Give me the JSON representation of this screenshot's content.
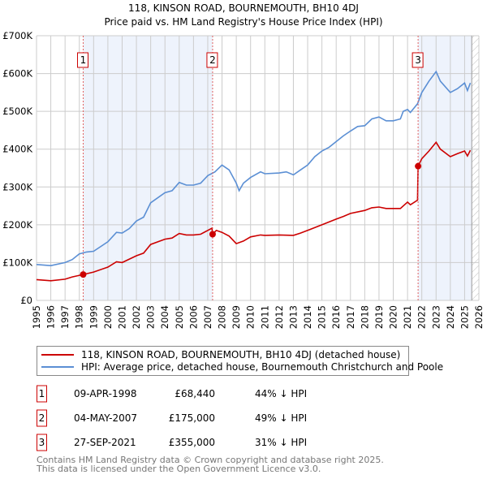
{
  "chart_data": {
    "type": "line",
    "title": "118, KINSON ROAD, BOURNEMOUTH, BH10 4DJ",
    "subtitle": "Price paid vs. HM Land Registry's House Price Index (HPI)",
    "xlim": [
      1995,
      2026
    ],
    "ylim": [
      0,
      700000
    ],
    "yticks": [
      {
        "v": 0,
        "label": "£0"
      },
      {
        "v": 100000,
        "label": "£100K"
      },
      {
        "v": 200000,
        "label": "£200K"
      },
      {
        "v": 300000,
        "label": "£300K"
      },
      {
        "v": 400000,
        "label": "£400K"
      },
      {
        "v": 500000,
        "label": "£500K"
      },
      {
        "v": 600000,
        "label": "£600K"
      },
      {
        "v": 700000,
        "label": "£700K"
      }
    ],
    "xticks": [
      "1995",
      "1996",
      "1997",
      "1998",
      "1999",
      "2000",
      "2001",
      "2002",
      "2003",
      "2004",
      "2005",
      "2006",
      "2007",
      "2008",
      "2009",
      "2010",
      "2011",
      "2012",
      "2013",
      "2014",
      "2015",
      "2016",
      "2017",
      "2018",
      "2019",
      "2020",
      "2021",
      "2022",
      "2023",
      "2024",
      "2025",
      "2026"
    ],
    "grid": true,
    "series": [
      {
        "name": "118, KINSON ROAD, BOURNEMOUTH, BH10 4DJ (detached house)",
        "color": "#cc0000",
        "points": [
          [
            1995,
            55
          ],
          [
            1996,
            52
          ],
          [
            1997,
            56
          ],
          [
            1997.5,
            62
          ],
          [
            1998.27,
            68.44
          ],
          [
            1999,
            75
          ],
          [
            2000,
            88
          ],
          [
            2000.6,
            102
          ],
          [
            2001,
            100
          ],
          [
            2002,
            118
          ],
          [
            2002.5,
            125
          ],
          [
            2003,
            148
          ],
          [
            2004,
            162
          ],
          [
            2004.5,
            165
          ],
          [
            2005,
            177
          ],
          [
            2005.5,
            173
          ],
          [
            2006,
            173
          ],
          [
            2006.5,
            175
          ],
          [
            2007,
            185
          ],
          [
            2007.3,
            191
          ],
          [
            2007.34,
            175
          ],
          [
            2007.6,
            185
          ],
          [
            2008,
            180
          ],
          [
            2008.5,
            170
          ],
          [
            2009,
            150
          ],
          [
            2009.5,
            157
          ],
          [
            2010,
            168
          ],
          [
            2010.7,
            173
          ],
          [
            2011,
            172
          ],
          [
            2012,
            173
          ],
          [
            2013,
            172
          ],
          [
            2013.5,
            178
          ],
          [
            2014,
            185
          ],
          [
            2015,
            200
          ],
          [
            2016,
            215
          ],
          [
            2016.5,
            222
          ],
          [
            2017,
            230
          ],
          [
            2018,
            238
          ],
          [
            2018.5,
            245
          ],
          [
            2019,
            247
          ],
          [
            2019.5,
            243
          ],
          [
            2020,
            243
          ],
          [
            2020.5,
            243
          ],
          [
            2021,
            260
          ],
          [
            2021.2,
            253
          ],
          [
            2021.7,
            265
          ],
          [
            2021.74,
            355
          ],
          [
            2022,
            375
          ],
          [
            2022.5,
            395
          ],
          [
            2023,
            418
          ],
          [
            2023.3,
            400
          ],
          [
            2024,
            380
          ],
          [
            2024.5,
            388
          ],
          [
            2025,
            395
          ],
          [
            2025.2,
            382
          ],
          [
            2025.4,
            397
          ]
        ]
      },
      {
        "name": "HPI: Average price, detached house, Bournemouth Christchurch and Poole",
        "color": "#5b8fd4",
        "points": [
          [
            1995,
            95
          ],
          [
            1996,
            92
          ],
          [
            1997,
            100
          ],
          [
            1997.5,
            108
          ],
          [
            1998,
            123
          ],
          [
            1998.5,
            128
          ],
          [
            1999,
            130
          ],
          [
            2000,
            155
          ],
          [
            2000.6,
            180
          ],
          [
            2001,
            178
          ],
          [
            2001.5,
            190
          ],
          [
            2002,
            210
          ],
          [
            2002.5,
            220
          ],
          [
            2003,
            258
          ],
          [
            2004,
            285
          ],
          [
            2004.5,
            290
          ],
          [
            2005,
            312
          ],
          [
            2005.5,
            305
          ],
          [
            2006,
            305
          ],
          [
            2006.5,
            310
          ],
          [
            2007,
            330
          ],
          [
            2007.5,
            340
          ],
          [
            2008,
            358
          ],
          [
            2008.5,
            345
          ],
          [
            2009,
            310
          ],
          [
            2009.2,
            290
          ],
          [
            2009.5,
            310
          ],
          [
            2010,
            325
          ],
          [
            2010.7,
            340
          ],
          [
            2011,
            335
          ],
          [
            2012,
            337
          ],
          [
            2012.5,
            340
          ],
          [
            2013,
            332
          ],
          [
            2013.5,
            345
          ],
          [
            2014,
            358
          ],
          [
            2014.5,
            380
          ],
          [
            2015,
            395
          ],
          [
            2015.5,
            405
          ],
          [
            2016,
            420
          ],
          [
            2016.5,
            435
          ],
          [
            2017,
            448
          ],
          [
            2017.5,
            460
          ],
          [
            2018,
            462
          ],
          [
            2018.5,
            480
          ],
          [
            2019,
            485
          ],
          [
            2019.5,
            475
          ],
          [
            2020,
            475
          ],
          [
            2020.5,
            480
          ],
          [
            2020.7,
            500
          ],
          [
            2021,
            505
          ],
          [
            2021.2,
            497
          ],
          [
            2021.7,
            520
          ],
          [
            2022,
            550
          ],
          [
            2022.5,
            580
          ],
          [
            2023,
            605
          ],
          [
            2023.3,
            580
          ],
          [
            2024,
            550
          ],
          [
            2024.5,
            560
          ],
          [
            2025,
            575
          ],
          [
            2025.2,
            555
          ],
          [
            2025.4,
            575
          ]
        ]
      }
    ],
    "value_unit": "thousand GBP",
    "shaded_ranges": [
      [
        1998.27,
        2007.34
      ],
      [
        2021.74,
        2025.5
      ]
    ],
    "hatched_after": 2025.5,
    "sales": [
      {
        "num": "1",
        "x": 1998.27,
        "y": 68.44,
        "date": "09-APR-1998",
        "price": "£68,440",
        "hpi": "44% ↓ HPI"
      },
      {
        "num": "2",
        "x": 2007.34,
        "y": 175,
        "date": "04-MAY-2007",
        "price": "£175,000",
        "hpi": "49% ↓ HPI"
      },
      {
        "num": "3",
        "x": 2021.74,
        "y": 355,
        "date": "27-SEP-2021",
        "price": "£355,000",
        "hpi": "31% ↓ HPI"
      }
    ]
  },
  "footer": {
    "line1": "Contains HM Land Registry data © Crown copyright and database right 2025.",
    "line2": "This data is licensed under the Open Government Licence v3.0."
  }
}
